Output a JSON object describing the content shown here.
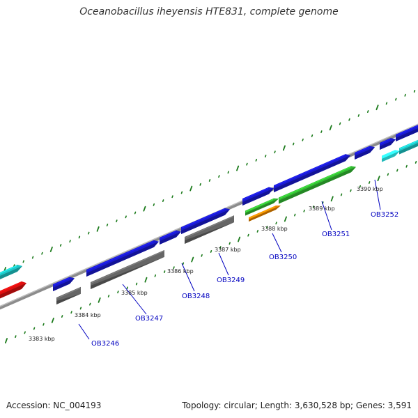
{
  "header": {
    "title": "Oceanobacillus iheyensis HTE831, complete genome"
  },
  "footer": {
    "accession": "Accession: NC_004193",
    "stats": "Topology: circular; Length: 3,630,528 bp; Genes: 3,591"
  },
  "colors": {
    "backbone": "#8c8c8c",
    "tick": "#1a7a1a",
    "forward_gene": "#1a1ad0",
    "reverse_gene": "#666666",
    "cyan_gene": "#1ec8c8",
    "light_cyan_gene": "#33ffff",
    "red_gene": "#e01010",
    "green_gene": "#33bb33",
    "orange_gene": "#ee8800",
    "label": "#0000c0"
  },
  "scale_labels": [
    {
      "text": "3383 kbp"
    },
    {
      "text": "3384 kbp"
    },
    {
      "text": "3385 kbp"
    },
    {
      "text": "3386 kbp"
    },
    {
      "text": "3387 kbp"
    },
    {
      "text": "3388 kbp"
    },
    {
      "text": "3389 kbp"
    },
    {
      "text": "3390 kbp"
    }
  ],
  "gene_labels": [
    {
      "text": "OB3246"
    },
    {
      "text": "OB3247"
    },
    {
      "text": "OB3248"
    },
    {
      "text": "OB3249"
    },
    {
      "text": "OB3250"
    },
    {
      "text": "OB3251"
    },
    {
      "text": "OB3252"
    }
  ]
}
